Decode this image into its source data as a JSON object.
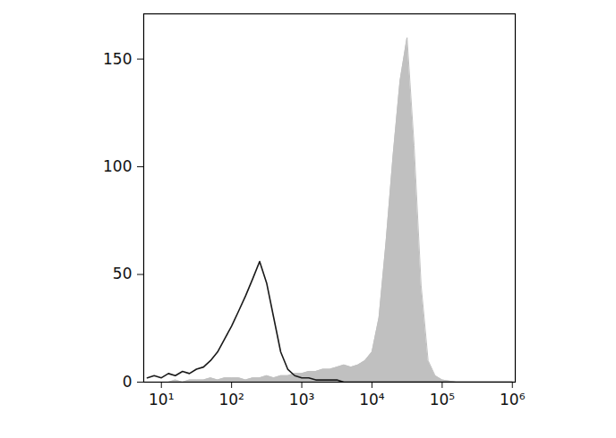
{
  "chart_data": {
    "type": "line",
    "log": "x",
    "x": [
      6.3,
      7.9,
      10,
      12.6,
      15.8,
      20,
      25.1,
      31.6,
      39.8,
      50.1,
      63.1,
      79.4,
      100,
      126,
      158,
      200,
      251,
      316,
      398,
      501,
      631,
      794,
      1000,
      1259,
      1585,
      1995,
      2512,
      3162,
      3981,
      5012,
      6310,
      7943,
      10000,
      12589,
      15849,
      19953,
      25119,
      31623,
      39811,
      50119,
      63096,
      79433,
      100000,
      158489,
      316228,
      630957,
      1000000
    ],
    "series": [
      {
        "type": "area",
        "color": "#c0c0c0",
        "values": [
          0,
          0,
          0,
          0,
          1,
          0,
          1,
          1,
          1,
          2,
          1,
          2,
          2,
          2,
          1,
          2,
          2,
          3,
          2,
          3,
          3,
          4,
          4,
          5,
          5,
          6,
          6,
          7,
          8,
          7,
          8,
          10,
          14,
          30,
          65,
          105,
          140,
          160,
          110,
          45,
          10,
          3,
          1,
          0,
          0,
          0,
          0
        ]
      },
      {
        "type": "line",
        "color": "#1a1a1a",
        "values": [
          2,
          3,
          2,
          4,
          3,
          5,
          4,
          6,
          7,
          10,
          14,
          20,
          26,
          33,
          40,
          48,
          56,
          46,
          30,
          14,
          6,
          3,
          2,
          2,
          1,
          1,
          1,
          1,
          0,
          0,
          0,
          0,
          0,
          0,
          0,
          0,
          0,
          0,
          0,
          0,
          0,
          0,
          0,
          0,
          0,
          0,
          0
        ]
      }
    ],
    "xlim": [
      5.6,
      1100000
    ],
    "xticks": [
      {
        "value": 10,
        "label": "10¹"
      },
      {
        "value": 100,
        "label": "10²"
      },
      {
        "value": 1000,
        "label": "10³"
      },
      {
        "value": 10000,
        "label": "10⁴"
      },
      {
        "value": 100000,
        "label": "10⁵"
      },
      {
        "value": 1000000,
        "label": "10⁶"
      }
    ],
    "ylim": [
      0,
      171
    ],
    "yticks": [
      0,
      50,
      100,
      150
    ]
  }
}
